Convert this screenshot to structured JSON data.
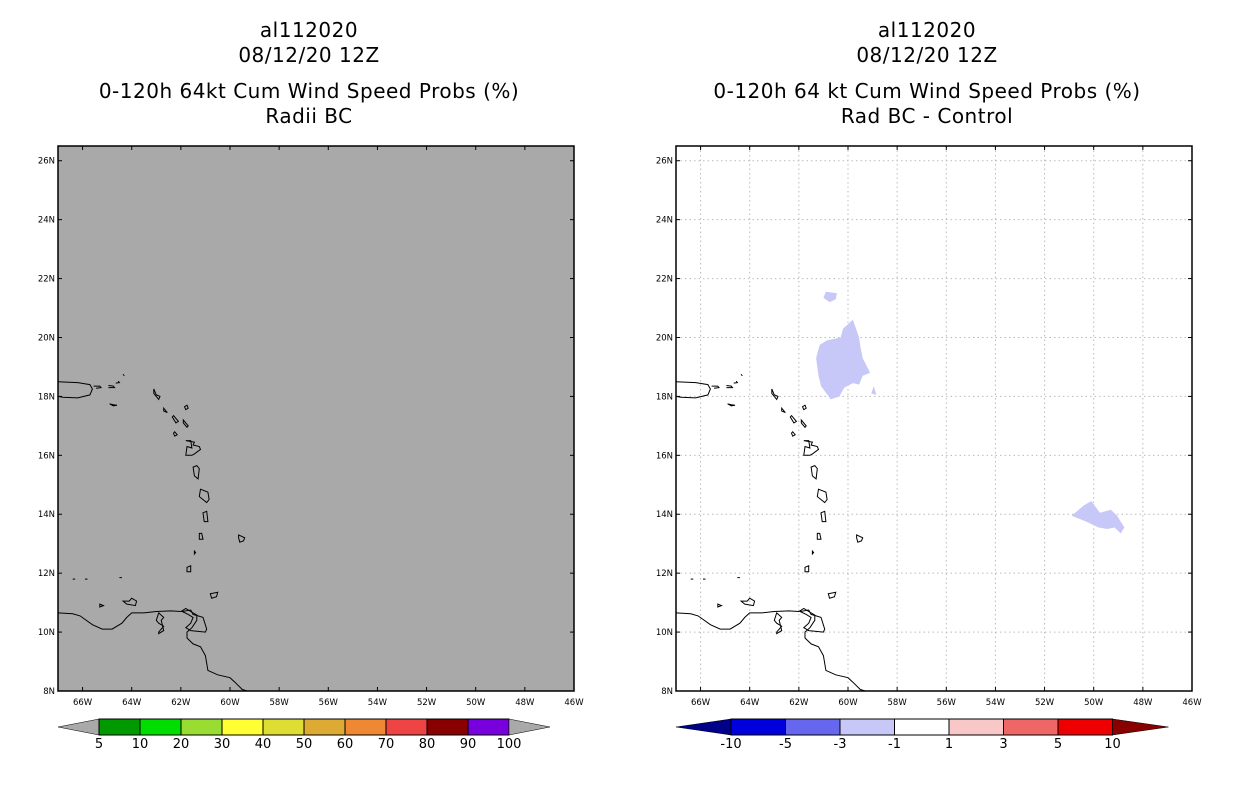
{
  "left_panel": {
    "title_lines": [
      "al112020",
      "08/12/20 12Z",
      "0-120h 64kt Cum Wind Speed Probs (%)",
      "Radii BC"
    ],
    "fill_color": "#a9a9a9",
    "colorbar": {
      "colors": [
        "#009900",
        "#00dd00",
        "#99dd33",
        "#ffff33",
        "#dddd33",
        "#ddaa33",
        "#ee8833",
        "#ee4444",
        "#880000",
        "#7700dd"
      ],
      "end_color": "#a9a9a9",
      "labels": [
        "5",
        "10",
        "20",
        "30",
        "40",
        "50",
        "60",
        "70",
        "80",
        "90",
        "100"
      ]
    }
  },
  "right_panel": {
    "title_lines": [
      "al112020",
      "08/12/20 12Z",
      "0-120h 64 kt Cum Wind Speed Probs (%)",
      "Rad BC - Control"
    ],
    "anomaly_color": "#c8c8f8",
    "colorbar": {
      "colors": [
        "#0000dd",
        "#6666ee",
        "#c8c8f8",
        "#ffffff",
        "#f8c8c8",
        "#ee6666",
        "#ee0000"
      ],
      "low_end_color": "#000088",
      "high_end_color": "#880000",
      "labels": [
        "-10",
        "-5",
        "-3",
        "-1",
        "1",
        "3",
        "5",
        "10"
      ]
    }
  },
  "map": {
    "lon_range": [
      -67,
      -46
    ],
    "lat_range": [
      8,
      26.5
    ],
    "lon_ticks": [
      {
        "value": -66,
        "label": "66W"
      },
      {
        "value": -64,
        "label": "64W"
      },
      {
        "value": -62,
        "label": "62W"
      },
      {
        "value": -60,
        "label": "60W"
      },
      {
        "value": -58,
        "label": "58W"
      },
      {
        "value": -56,
        "label": "56W"
      },
      {
        "value": -54,
        "label": "54W"
      },
      {
        "value": -52,
        "label": "52W"
      },
      {
        "value": -50,
        "label": "50W"
      },
      {
        "value": -48,
        "label": "48W"
      },
      {
        "value": -46,
        "label": "46W"
      }
    ],
    "lat_ticks": [
      {
        "value": 8,
        "label": "8N"
      },
      {
        "value": 10,
        "label": "10N"
      },
      {
        "value": 12,
        "label": "12N"
      },
      {
        "value": 14,
        "label": "14N"
      },
      {
        "value": 16,
        "label": "16N"
      },
      {
        "value": 18,
        "label": "18N"
      },
      {
        "value": 20,
        "label": "20N"
      },
      {
        "value": 22,
        "label": "22N"
      },
      {
        "value": 24,
        "label": "24N"
      },
      {
        "value": 26,
        "label": "26N"
      }
    ]
  }
}
